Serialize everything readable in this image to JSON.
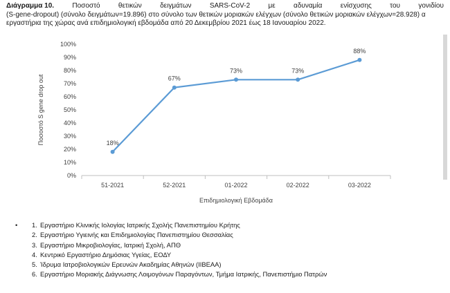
{
  "caption": {
    "label": "Διάγραμμα 10.",
    "line1_words": [
      "Ποσοστό",
      "θετικών",
      "δειγμάτων",
      "SARS-CoV-2",
      "με",
      "αδυναμία",
      "ενίσχυσης",
      "του",
      "γονιδίου"
    ],
    "line2": "(S-gene-dropout) (σύνολο δειγμάτων=19.896) στο σύνολο των θετικών μοριακών ελέγχων (σύνολο θετικών μοριακών ελέγχων=28.928) α",
    "line3": "εργαστήρια της χώρας ανά επιδημιολογική εβδομάδα από 20 Δεκεμβρίου 2021 έως 18 Ιανουαρίου 2022."
  },
  "chart_data": {
    "type": "line",
    "categories": [
      "51-2021",
      "52-2021",
      "01-2022",
      "02-2022",
      "03-2022"
    ],
    "values": [
      18,
      67,
      73,
      73,
      88
    ],
    "data_labels": [
      "18%",
      "67%",
      "73%",
      "73%",
      "88%"
    ],
    "y_ticks": [
      0,
      10,
      20,
      30,
      40,
      50,
      60,
      70,
      80,
      90,
      100
    ],
    "y_tick_labels": [
      "0%",
      "10%",
      "20%",
      "30%",
      "40%",
      "50%",
      "60%",
      "70%",
      "80%",
      "90%",
      "100%"
    ],
    "ylim": [
      0,
      100
    ],
    "xlabel": "Επιδημιολογική Εβδομάδα",
    "ylabel": "Ποσοστό S gene drop out",
    "line_color": "#5b9bd5",
    "grid": false
  },
  "labs": [
    {
      "bullet": "•",
      "num": "1.",
      "text": "Εργαστήριο Κλινικής Ιολογίας Ιατρικής Σχολής Πανεπιστημίου Κρήτης"
    },
    {
      "bullet": "",
      "num": "2.",
      "text": "Εργαστήριο Υγιεινής και Επιδημιολογίας Πανεπιστημίου Θεσσαλίας"
    },
    {
      "bullet": "",
      "num": "3.",
      "text": "Εργαστήριο Μικροβιολογίας, Ιατρική Σχολή, ΑΠΘ"
    },
    {
      "bullet": "",
      "num": "4.",
      "text": "Κεντρικό Εργαστήριο Δημόσιας Υγείας, ΕΟΔΥ"
    },
    {
      "bullet": "",
      "num": "5.",
      "text": "Ίδρυμα Ιατροβιολογικών Ερευνών Ακαδημίας Αθηνών (ΙΙΒΕΑΑ)"
    },
    {
      "bullet": "",
      "num": "6.",
      "text": "Εργαστήριο Μοριακής Διάγνωσης Λοιμογόνων Παραγόντων, Τμήμα Ιατρικής, Πανεπιστήμιο Πατρών"
    }
  ]
}
